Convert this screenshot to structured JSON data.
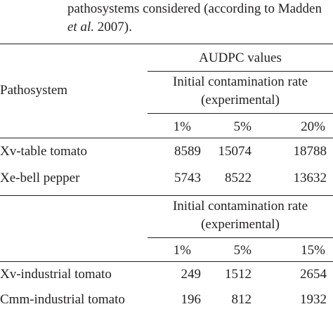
{
  "caption": {
    "line1": "pathosystems considered (according to Madden",
    "line2_italic": "et al.",
    "line2_rest": " 2007)."
  },
  "table": {
    "header_group": "AUDPC values",
    "header_row_label": "Pathosystem",
    "block1": {
      "subheader_line1": "Initial contamination rate",
      "subheader_line2": "(experimental)",
      "columns": [
        "1%",
        "5%",
        "20%"
      ],
      "rows": [
        {
          "name": "Xv-table tomato",
          "values": [
            "8589",
            "15074",
            "18788"
          ]
        },
        {
          "name": "Xe-bell pepper",
          "values": [
            "5743",
            "8522",
            "13632"
          ]
        }
      ]
    },
    "block2": {
      "subheader_line1": "Initial contamination rate",
      "subheader_line2": "(experimental)",
      "columns": [
        "1%",
        "5%",
        "15%"
      ],
      "rows": [
        {
          "name": "Xv-industrial tomato",
          "values": [
            "249",
            "1512",
            "2654"
          ]
        },
        {
          "name": "Cmm-industrial tomato",
          "values": [
            "196",
            "812",
            "1932"
          ]
        }
      ]
    }
  }
}
